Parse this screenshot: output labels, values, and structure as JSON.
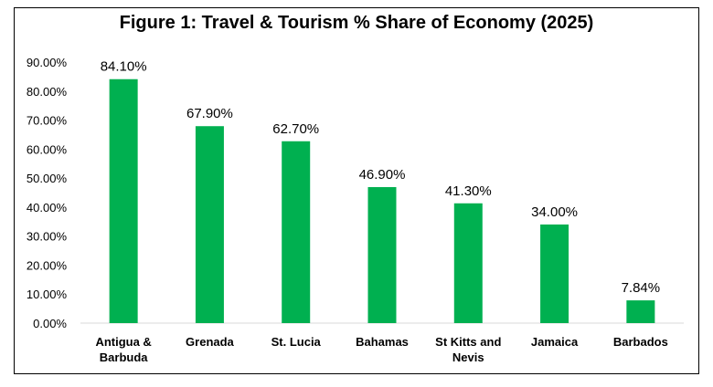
{
  "chart_data": {
    "type": "bar",
    "title": "Figure 1: Travel & Tourism % Share of Economy (2025)",
    "categories": [
      [
        "Antigua &",
        "Barbuda"
      ],
      [
        "Grenada"
      ],
      [
        "St. Lucia"
      ],
      [
        "Bahamas"
      ],
      [
        "St Kitts and",
        "Nevis"
      ],
      [
        "Jamaica"
      ],
      [
        "Barbados"
      ]
    ],
    "values": [
      84.1,
      67.9,
      62.7,
      46.9,
      41.3,
      34.0,
      7.84
    ],
    "data_labels": [
      "84.10%",
      "67.90%",
      "62.70%",
      "46.90%",
      "41.30%",
      "34.00%",
      "7.84%"
    ],
    "yticks": [
      "0.00%",
      "10.00%",
      "20.00%",
      "30.00%",
      "40.00%",
      "50.00%",
      "60.00%",
      "70.00%",
      "80.00%",
      "90.00%"
    ],
    "ylim": [
      0,
      90
    ],
    "grid": false,
    "bar_color": "#00b050"
  }
}
